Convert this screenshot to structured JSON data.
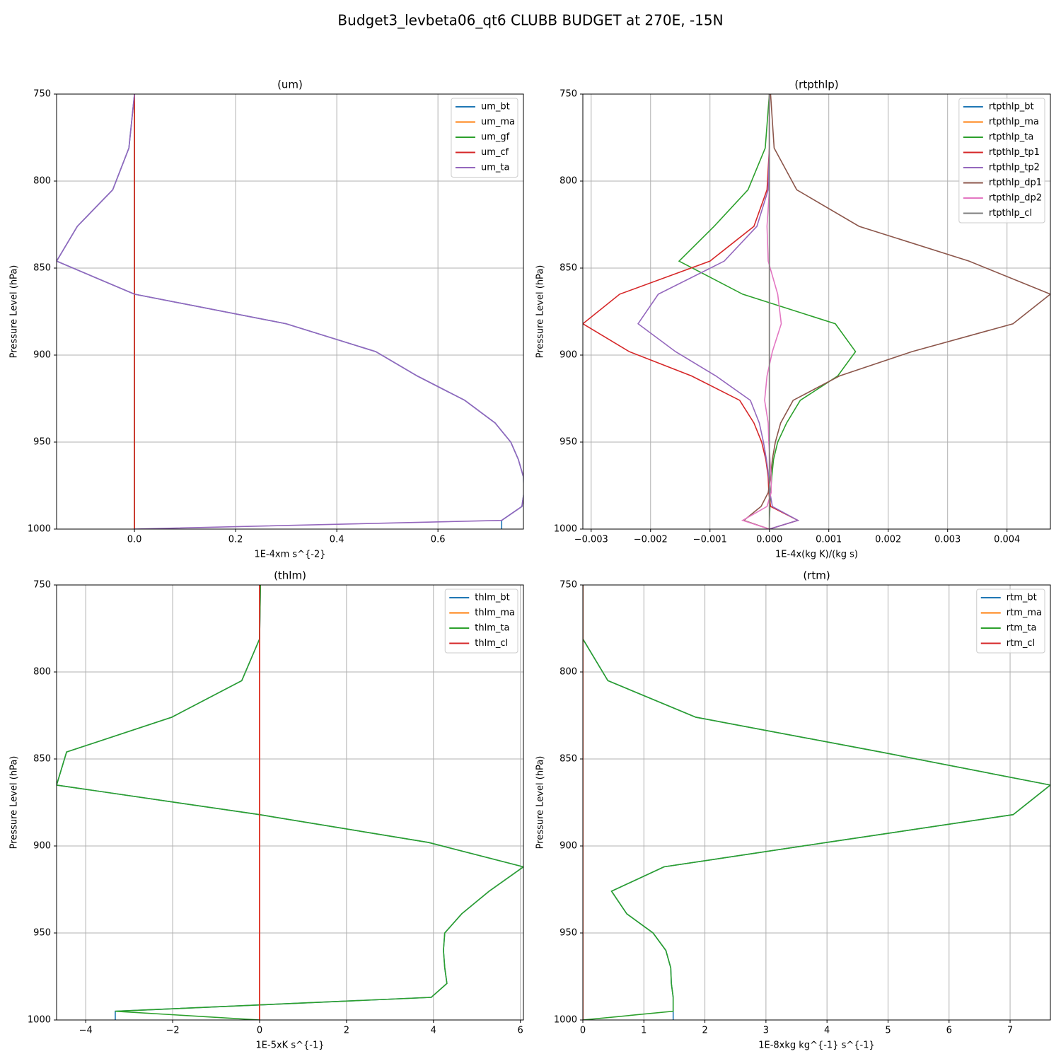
{
  "title": "Budget3_levbeta06_qt6 CLUBB BUDGET at 270E, -15N",
  "chart_data": [
    {
      "type": "line",
      "title": "(um)",
      "xlabel": "1E-4xm s^{-2}",
      "ylabel": "Pressure Level (hPa)",
      "xlim": [
        -0.154,
        0.769
      ],
      "ylim": [
        1000,
        750
      ],
      "xticks": [
        {
          "value": 0,
          "label": "0.0"
        },
        0.2,
        0.4,
        0.6
      ],
      "yticks": [
        750,
        800,
        850,
        900,
        950,
        1000
      ],
      "grid": true,
      "legend": "upper right",
      "levels": [
        750,
        781,
        805,
        826,
        846,
        865,
        882,
        898,
        912,
        926,
        939,
        950,
        960,
        970,
        979,
        987,
        995,
        1000
      ],
      "series": [
        {
          "name": "um_bt",
          "color": "#1f77b4",
          "values": [
            0,
            -0.011,
            -0.043,
            -0.113,
            -0.154,
            0,
            0.3,
            0.477,
            0.559,
            0.653,
            0.713,
            0.744,
            0.759,
            0.769,
            0.77,
            0.766,
            0.726,
            0.726
          ]
        },
        {
          "name": "um_ma",
          "color": "#ff7f0e",
          "values": [
            0,
            0,
            0,
            0,
            0,
            0,
            0,
            0,
            0,
            0,
            0,
            0,
            0,
            0,
            0,
            0,
            0,
            0
          ]
        },
        {
          "name": "um_gf",
          "color": "#2ca02c",
          "values": [
            0,
            0,
            0,
            0,
            0,
            0,
            0,
            0,
            0,
            0,
            0,
            0,
            0,
            0,
            0,
            0,
            0,
            0
          ]
        },
        {
          "name": "um_cf",
          "color": "#d62728",
          "values": [
            0,
            0,
            0,
            0,
            0,
            0,
            0,
            0,
            0,
            0,
            0,
            0,
            0,
            0,
            0,
            0,
            0,
            0
          ]
        },
        {
          "name": "um_ta",
          "color": "#9467bd",
          "values": [
            0,
            -0.011,
            -0.043,
            -0.113,
            -0.154,
            0,
            0.3,
            0.477,
            0.559,
            0.653,
            0.713,
            0.744,
            0.759,
            0.769,
            0.77,
            0.766,
            0.726,
            0
          ]
        }
      ]
    },
    {
      "type": "line",
      "title": "(rtpthlp)",
      "xlabel": "1E-4x(kg K)/(kg s)",
      "ylabel": "Pressure Level (hPa)",
      "xlim": [
        -0.00314,
        0.00473
      ],
      "ylim": [
        1000,
        750
      ],
      "xticks": [
        {
          "value": -0.003,
          "label": "−0.003"
        },
        {
          "value": -0.002,
          "label": "−0.002"
        },
        {
          "value": -0.001,
          "label": "−0.001"
        },
        {
          "value": 0,
          "label": "0.000"
        },
        0.001,
        0.002,
        0.003,
        0.004
      ],
      "yticks": [
        750,
        800,
        850,
        900,
        950,
        1000
      ],
      "grid": true,
      "legend": "upper right",
      "levels": [
        750,
        781,
        805,
        826,
        846,
        865,
        882,
        898,
        912,
        926,
        939,
        950,
        960,
        970,
        979,
        987,
        995,
        1000
      ],
      "series": [
        {
          "name": "rtpthlp_bt",
          "color": "#1f77b4",
          "values": [
            0,
            0,
            0,
            0,
            0,
            0,
            0,
            0,
            0,
            0,
            0,
            0,
            0,
            0,
            0,
            0,
            0,
            0
          ]
        },
        {
          "name": "rtpthlp_ma",
          "color": "#ff7f0e",
          "values": [
            0,
            0,
            0,
            0,
            0,
            0,
            0,
            0,
            0,
            0,
            0,
            0,
            0,
            0,
            0,
            0,
            0,
            0
          ]
        },
        {
          "name": "rtpthlp_ta",
          "color": "#2ca02c",
          "values": [
            0,
            -7e-05,
            -0.00036,
            -0.00093,
            -0.00152,
            -0.00045,
            0.00111,
            0.00145,
            0.00115,
            0.00052,
            0.00029,
            0.00014,
            7e-05,
            4e-05,
            2e-05,
            1e-05,
            0,
            0
          ]
        },
        {
          "name": "rtpthlp_tp1",
          "color": "#d62728",
          "values": [
            0,
            0,
            -4e-05,
            -0.00026,
            -0.001,
            -0.00252,
            -0.00314,
            -0.00236,
            -0.00131,
            -0.0005,
            -0.00026,
            -0.00013,
            -6e-05,
            -2e-05,
            -1e-05,
            2e-05,
            0.00048,
            0
          ]
        },
        {
          "name": "rtpthlp_tp2",
          "color": "#9467bd",
          "values": [
            0,
            0,
            -2e-05,
            -0.00021,
            -0.00076,
            -0.00187,
            -0.00221,
            -0.00158,
            -0.0009,
            -0.00032,
            -0.00017,
            -0.0001,
            -5e-05,
            -1e-05,
            1e-05,
            5e-05,
            0.00048,
            0
          ]
        },
        {
          "name": "rtpthlp_dp1",
          "color": "#8c564b",
          "values": [
            2e-05,
            8e-05,
            0.00046,
            0.00151,
            0.00336,
            0.00473,
            0.0041,
            0.0024,
            0.00118,
            0.0004,
            0.00019,
            0.0001,
            5e-05,
            2e-05,
            -2e-05,
            -0.00014,
            -0.00043,
            0
          ]
        },
        {
          "name": "rtpthlp_dp2",
          "color": "#e377c2",
          "values": [
            0,
            0,
            0,
            -4e-05,
            -2e-05,
            0.00014,
            0.0002,
            5e-05,
            -4e-05,
            -8e-05,
            -2e-05,
            -1e-05,
            1e-05,
            3e-05,
            3e-05,
            -4e-05,
            -0.00045,
            0
          ]
        },
        {
          "name": "rtpthlp_cl",
          "color": "#7f7f7f",
          "values": [
            0,
            0,
            0,
            0,
            0,
            0,
            0,
            0,
            0,
            0,
            0,
            0,
            0,
            0,
            0,
            0,
            0,
            0
          ]
        }
      ]
    },
    {
      "type": "line",
      "title": "(thlm)",
      "xlabel": "1E-5xK s^{-1}",
      "ylabel": "Pressure Level (hPa)",
      "xlim": [
        -4.67,
        6.07
      ],
      "ylim": [
        1000,
        750
      ],
      "xticks": [
        {
          "value": -4,
          "label": "−4"
        },
        {
          "value": -2,
          "label": "−2"
        },
        0,
        2,
        4,
        6
      ],
      "yticks": [
        750,
        800,
        850,
        900,
        950,
        1000
      ],
      "grid": true,
      "legend": "upper right",
      "levels": [
        750,
        781,
        805,
        826,
        846,
        865,
        882,
        898,
        912,
        926,
        939,
        950,
        960,
        970,
        979,
        987,
        995,
        1000
      ],
      "series": [
        {
          "name": "thlm_bt",
          "color": "#1f77b4",
          "values": [
            0.02,
            0,
            -0.41,
            -2.02,
            -4.44,
            -4.67,
            0,
            3.89,
            6.07,
            5.28,
            4.65,
            4.26,
            4.23,
            4.26,
            4.31,
            3.95,
            -3.32,
            -3.32
          ]
        },
        {
          "name": "thlm_ma",
          "color": "#ff7f0e",
          "values": [
            0,
            0,
            0,
            0,
            0,
            0,
            0,
            0,
            0,
            0,
            0,
            0,
            0,
            0,
            0,
            0,
            0,
            0
          ]
        },
        {
          "name": "thlm_ta",
          "color": "#2ca02c",
          "values": [
            0.02,
            0,
            -0.41,
            -2.02,
            -4.44,
            -4.67,
            0,
            3.89,
            6.07,
            5.28,
            4.65,
            4.26,
            4.23,
            4.26,
            4.31,
            3.95,
            -3.32,
            0
          ]
        },
        {
          "name": "thlm_cl",
          "color": "#d62728",
          "values": [
            0,
            0,
            0,
            0,
            0,
            0,
            0,
            0,
            0,
            0,
            0,
            0,
            0,
            0,
            0,
            0,
            0,
            0
          ]
        }
      ]
    },
    {
      "type": "line",
      "title": "(rtm)",
      "xlabel": "1E-8xkg kg^{-1} s^{-1}",
      "ylabel": "Pressure Level (hPa)",
      "xlim": [
        0,
        7.66
      ],
      "ylim": [
        1000,
        750
      ],
      "xticks": [
        0,
        1,
        2,
        3,
        4,
        5,
        6,
        7
      ],
      "yticks": [
        750,
        800,
        850,
        900,
        950,
        1000
      ],
      "grid": true,
      "legend": "upper right",
      "levels": [
        750,
        781,
        805,
        826,
        846,
        865,
        882,
        898,
        912,
        926,
        939,
        950,
        960,
        970,
        979,
        987,
        995,
        1000
      ],
      "series": [
        {
          "name": "rtm_bt",
          "color": "#1f77b4",
          "values": [
            0,
            0,
            0.41,
            1.85,
            4.88,
            7.66,
            7.05,
            3.99,
            1.33,
            0.47,
            0.72,
            1.15,
            1.36,
            1.44,
            1.45,
            1.48,
            1.48,
            1.48
          ]
        },
        {
          "name": "rtm_ma",
          "color": "#ff7f0e",
          "values": [
            0,
            0,
            0,
            0,
            0,
            0,
            0,
            0,
            0,
            0,
            0,
            0,
            0,
            0,
            0,
            0,
            0,
            0
          ]
        },
        {
          "name": "rtm_ta",
          "color": "#2ca02c",
          "values": [
            0,
            0,
            0.41,
            1.85,
            4.88,
            7.66,
            7.05,
            3.99,
            1.33,
            0.47,
            0.72,
            1.15,
            1.36,
            1.44,
            1.45,
            1.48,
            1.48,
            0
          ]
        },
        {
          "name": "rtm_cl",
          "color": "#d62728",
          "values": [
            0,
            0,
            0,
            0,
            0,
            0,
            0,
            0,
            0,
            0,
            0,
            0,
            0,
            0,
            0,
            0,
            0,
            0
          ]
        }
      ]
    }
  ]
}
